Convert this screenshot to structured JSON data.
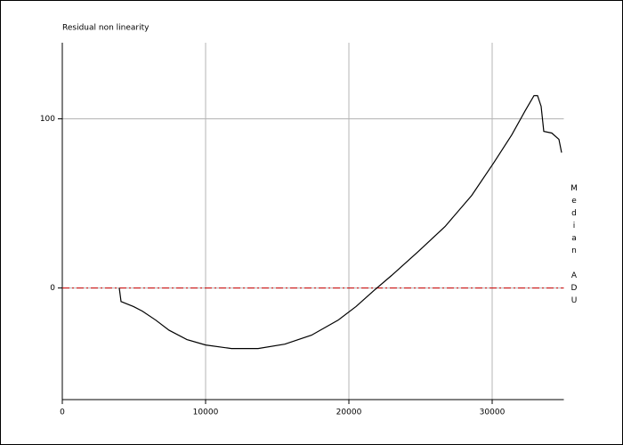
{
  "chart_data": {
    "type": "line",
    "title": "Residual non linearity",
    "ylabel": "Median ADU",
    "x": [
      3975,
      4100,
      4969,
      5590,
      6522,
      7453,
      8696,
      10000,
      11801,
      13665,
      15528,
      17391,
      19255,
      20497,
      21739,
      22981,
      24845,
      26708,
      28571,
      30124,
      31366,
      32298,
      32919,
      33168,
      33416,
      33602,
      34161,
      34658,
      34845
    ],
    "values": [
      0,
      -8,
      -11,
      -13.7,
      -19,
      -25,
      -30.5,
      -33.7,
      -35.8,
      -35.8,
      -33.2,
      -27.9,
      -19,
      -11,
      -1.6,
      7.4,
      21.6,
      36.3,
      54.7,
      74.2,
      90.5,
      104.7,
      113.7,
      113.7,
      107.4,
      92.6,
      91.6,
      87.9,
      80
    ],
    "color": "#000000",
    "reference_line": {
      "value": 0,
      "color": "#cc0000"
    },
    "xlim": [
      0,
      35000
    ],
    "ylim": [
      -66,
      145
    ],
    "xticks": [
      0,
      10000,
      20000,
      30000
    ],
    "yticks": [
      0,
      100
    ],
    "grid": true
  }
}
